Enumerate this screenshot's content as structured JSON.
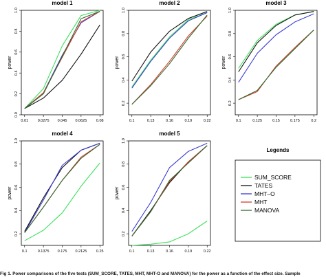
{
  "caption": "Fig 1. Power comparisons of the five tests (SUM_SCORE, TATES, MHT, MHT-O and MANOVA) for the power as a function of the effect size. Sample",
  "legend": {
    "title": "Legends",
    "items": [
      {
        "label": "SUM_SCORE",
        "color": "#3be05a"
      },
      {
        "label": "TATES",
        "color": "#111111"
      },
      {
        "label": "MHT–O",
        "color": "#3a3ad4"
      },
      {
        "label": "MHT",
        "color": "#d43a2a"
      },
      {
        "label": "MANOVA",
        "color": "#2f6b2f"
      }
    ]
  },
  "chart_data": [
    {
      "type": "line",
      "title": "model 1",
      "ylabel": "power",
      "ylim": [
        0,
        1
      ],
      "yticks": [
        "0.0",
        "0.2",
        "0.4",
        "0.6",
        "0.8",
        "1.0"
      ],
      "categories": [
        "0.01",
        "0.0275",
        "0.045",
        "0.0625",
        "0.08"
      ],
      "series": [
        {
          "key": "SUM_SCORE",
          "values": [
            0.06,
            0.25,
            0.66,
            0.95,
            1.0
          ]
        },
        {
          "key": "TATES",
          "values": [
            0.06,
            0.16,
            0.33,
            0.58,
            0.86
          ]
        },
        {
          "key": "MHT–O",
          "values": [
            0.06,
            0.21,
            0.57,
            0.88,
            0.99
          ]
        },
        {
          "key": "MHT",
          "values": [
            0.06,
            0.21,
            0.55,
            0.89,
            0.99
          ]
        },
        {
          "key": "MANOVA",
          "values": [
            0.06,
            0.2,
            0.56,
            0.92,
            0.99
          ]
        }
      ]
    },
    {
      "type": "line",
      "title": "model 2",
      "ylabel": "power",
      "ylim": [
        0.1,
        1
      ],
      "yticks": [
        "0.2",
        "0.4",
        "0.6",
        "0.8",
        "1.0"
      ],
      "categories": [
        "0.1",
        "0.13",
        "0.16",
        "0.19",
        "0.22"
      ],
      "series": [
        {
          "key": "SUM_SCORE",
          "values": [
            0.34,
            0.57,
            0.77,
            0.92,
            0.98
          ]
        },
        {
          "key": "TATES",
          "values": [
            0.39,
            0.64,
            0.82,
            0.93,
            0.99
          ]
        },
        {
          "key": "MHT–O",
          "values": [
            0.33,
            0.56,
            0.76,
            0.91,
            0.98
          ]
        },
        {
          "key": "MHT",
          "values": [
            0.19,
            0.36,
            0.56,
            0.78,
            0.95
          ]
        },
        {
          "key": "MANOVA",
          "values": [
            0.19,
            0.35,
            0.54,
            0.76,
            0.96
          ]
        }
      ]
    },
    {
      "type": "line",
      "title": "model 3",
      "ylabel": "power",
      "ylim": [
        0.1,
        1
      ],
      "yticks": [
        "0.2",
        "0.4",
        "0.6",
        "0.8",
        "1.0"
      ],
      "categories": [
        "0.1",
        "0.125",
        "0.15",
        "0.175",
        "0.2"
      ],
      "series": [
        {
          "key": "SUM_SCORE",
          "values": [
            0.5,
            0.74,
            0.88,
            0.96,
            0.99
          ]
        },
        {
          "key": "TATES",
          "values": [
            0.47,
            0.72,
            0.87,
            0.96,
            0.99
          ]
        },
        {
          "key": "MHT–O",
          "values": [
            0.38,
            0.63,
            0.79,
            0.9,
            0.97
          ]
        },
        {
          "key": "MHT",
          "values": [
            0.23,
            0.3,
            0.52,
            0.68,
            0.83
          ]
        },
        {
          "key": "MANOVA",
          "values": [
            0.23,
            0.31,
            0.51,
            0.67,
            0.83
          ]
        }
      ]
    },
    {
      "type": "line",
      "title": "model 4",
      "ylabel": "power",
      "ylim": [
        0.1,
        1
      ],
      "yticks": [
        "0.2",
        "0.4",
        "0.6",
        "0.8",
        "1.0"
      ],
      "categories": [
        "0.1",
        "0.1375",
        "0.175",
        "0.2125",
        "0.25"
      ],
      "series": [
        {
          "key": "SUM_SCORE",
          "values": [
            0.14,
            0.23,
            0.38,
            0.61,
            0.81
          ]
        },
        {
          "key": "TATES",
          "values": [
            0.22,
            0.51,
            0.77,
            0.92,
            0.98
          ]
        },
        {
          "key": "MHT–O",
          "values": [
            0.21,
            0.49,
            0.79,
            0.92,
            0.98
          ]
        },
        {
          "key": "MHT",
          "values": [
            0.21,
            0.43,
            0.66,
            0.86,
            0.97
          ]
        },
        {
          "key": "MANOVA",
          "values": [
            0.21,
            0.43,
            0.66,
            0.85,
            0.97
          ]
        }
      ]
    },
    {
      "type": "line",
      "title": "model 5",
      "ylabel": "power",
      "ylim": [
        0.1,
        1
      ],
      "yticks": [
        "0.2",
        "0.4",
        "0.6",
        "0.8",
        "1.0"
      ],
      "categories": [
        "0.1",
        "0.13",
        "0.16",
        "0.19",
        "0.22"
      ],
      "series": [
        {
          "key": "SUM_SCORE",
          "values": [
            0.1,
            0.11,
            0.13,
            0.2,
            0.31
          ]
        },
        {
          "key": "TATES",
          "values": [
            0.18,
            0.4,
            0.64,
            0.82,
            0.96
          ]
        },
        {
          "key": "MHT–O",
          "values": [
            0.22,
            0.47,
            0.77,
            0.91,
            0.98
          ]
        },
        {
          "key": "MHT",
          "values": [
            0.18,
            0.39,
            0.65,
            0.82,
            0.96
          ]
        },
        {
          "key": "MANOVA",
          "values": [
            0.18,
            0.39,
            0.66,
            0.81,
            0.96
          ]
        }
      ]
    }
  ]
}
